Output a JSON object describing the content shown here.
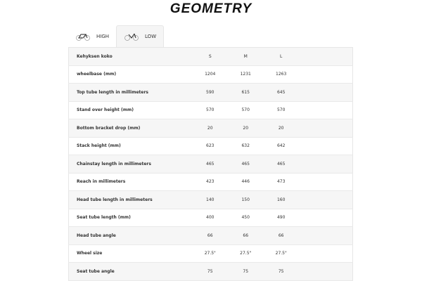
{
  "title": "GEOMETRY",
  "tabs": [
    {
      "label": "HIGH",
      "icon": "bike-high-frame-icon",
      "active": false
    },
    {
      "label": "LOW",
      "icon": "bike-low-frame-icon",
      "active": true
    }
  ],
  "table": {
    "headers": [
      "Kehyksen koko",
      "S",
      "M",
      "L"
    ],
    "rows": [
      [
        "wheelbase (mm)",
        "1204",
        "1231",
        "1263"
      ],
      [
        "Top tube length in millimeters",
        "590",
        "615",
        "645"
      ],
      [
        "Stand over height (mm)",
        "570",
        "570",
        "570"
      ],
      [
        "Bottom bracket drop (mm)",
        "20",
        "20",
        "20"
      ],
      [
        "Stack height (mm)",
        "623",
        "632",
        "642"
      ],
      [
        "Chainstay length in millimeters",
        "465",
        "465",
        "465"
      ],
      [
        "Reach in millimeters",
        "423",
        "446",
        "473"
      ],
      [
        "Head tube length in millimeters",
        "140",
        "150",
        "160"
      ],
      [
        "Seat tube length (mm)",
        "400",
        "450",
        "490"
      ],
      [
        "Head tube angle",
        "66",
        "66",
        "66"
      ],
      [
        "Wheel size",
        "27.5\"",
        "27.5\"",
        "27.5\""
      ],
      [
        "Seat tube angle",
        "75",
        "75",
        "75"
      ]
    ]
  }
}
